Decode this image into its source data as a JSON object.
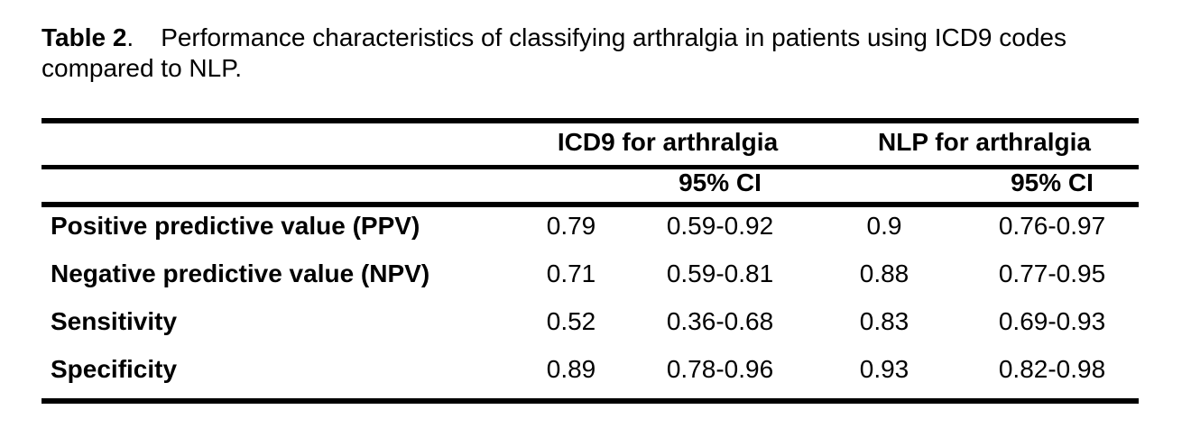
{
  "page": {
    "background": "#ffffff",
    "text_color": "#000000",
    "rule_color": "#000000"
  },
  "caption": {
    "label": "Table 2",
    "separator": ".",
    "line1": "Performance characteristics of classifying arthralgia in patients using ICD9 codes",
    "line2": "compared to NLP."
  },
  "table": {
    "headers": {
      "icd9_group": "ICD9 for arthralgia",
      "nlp_group": "NLP for arthralgia",
      "ci": "95% CI"
    },
    "rows": [
      {
        "label": "Positive predictive value (PPV)",
        "icd9_value": "0.79",
        "icd9_ci": "0.59-0.92",
        "nlp_value": "0.9",
        "nlp_ci": "0.76-0.97"
      },
      {
        "label": "Negative predictive value (NPV)",
        "icd9_value": "0.71",
        "icd9_ci": "0.59-0.81",
        "nlp_value": "0.88",
        "nlp_ci": "0.77-0.95"
      },
      {
        "label": "Sensitivity",
        "icd9_value": "0.52",
        "icd9_ci": "0.36-0.68",
        "nlp_value": "0.83",
        "nlp_ci": "0.69-0.93"
      },
      {
        "label": "Specificity",
        "icd9_value": "0.89",
        "icd9_ci": "0.78-0.96",
        "nlp_value": "0.93",
        "nlp_ci": "0.82-0.98"
      }
    ]
  }
}
